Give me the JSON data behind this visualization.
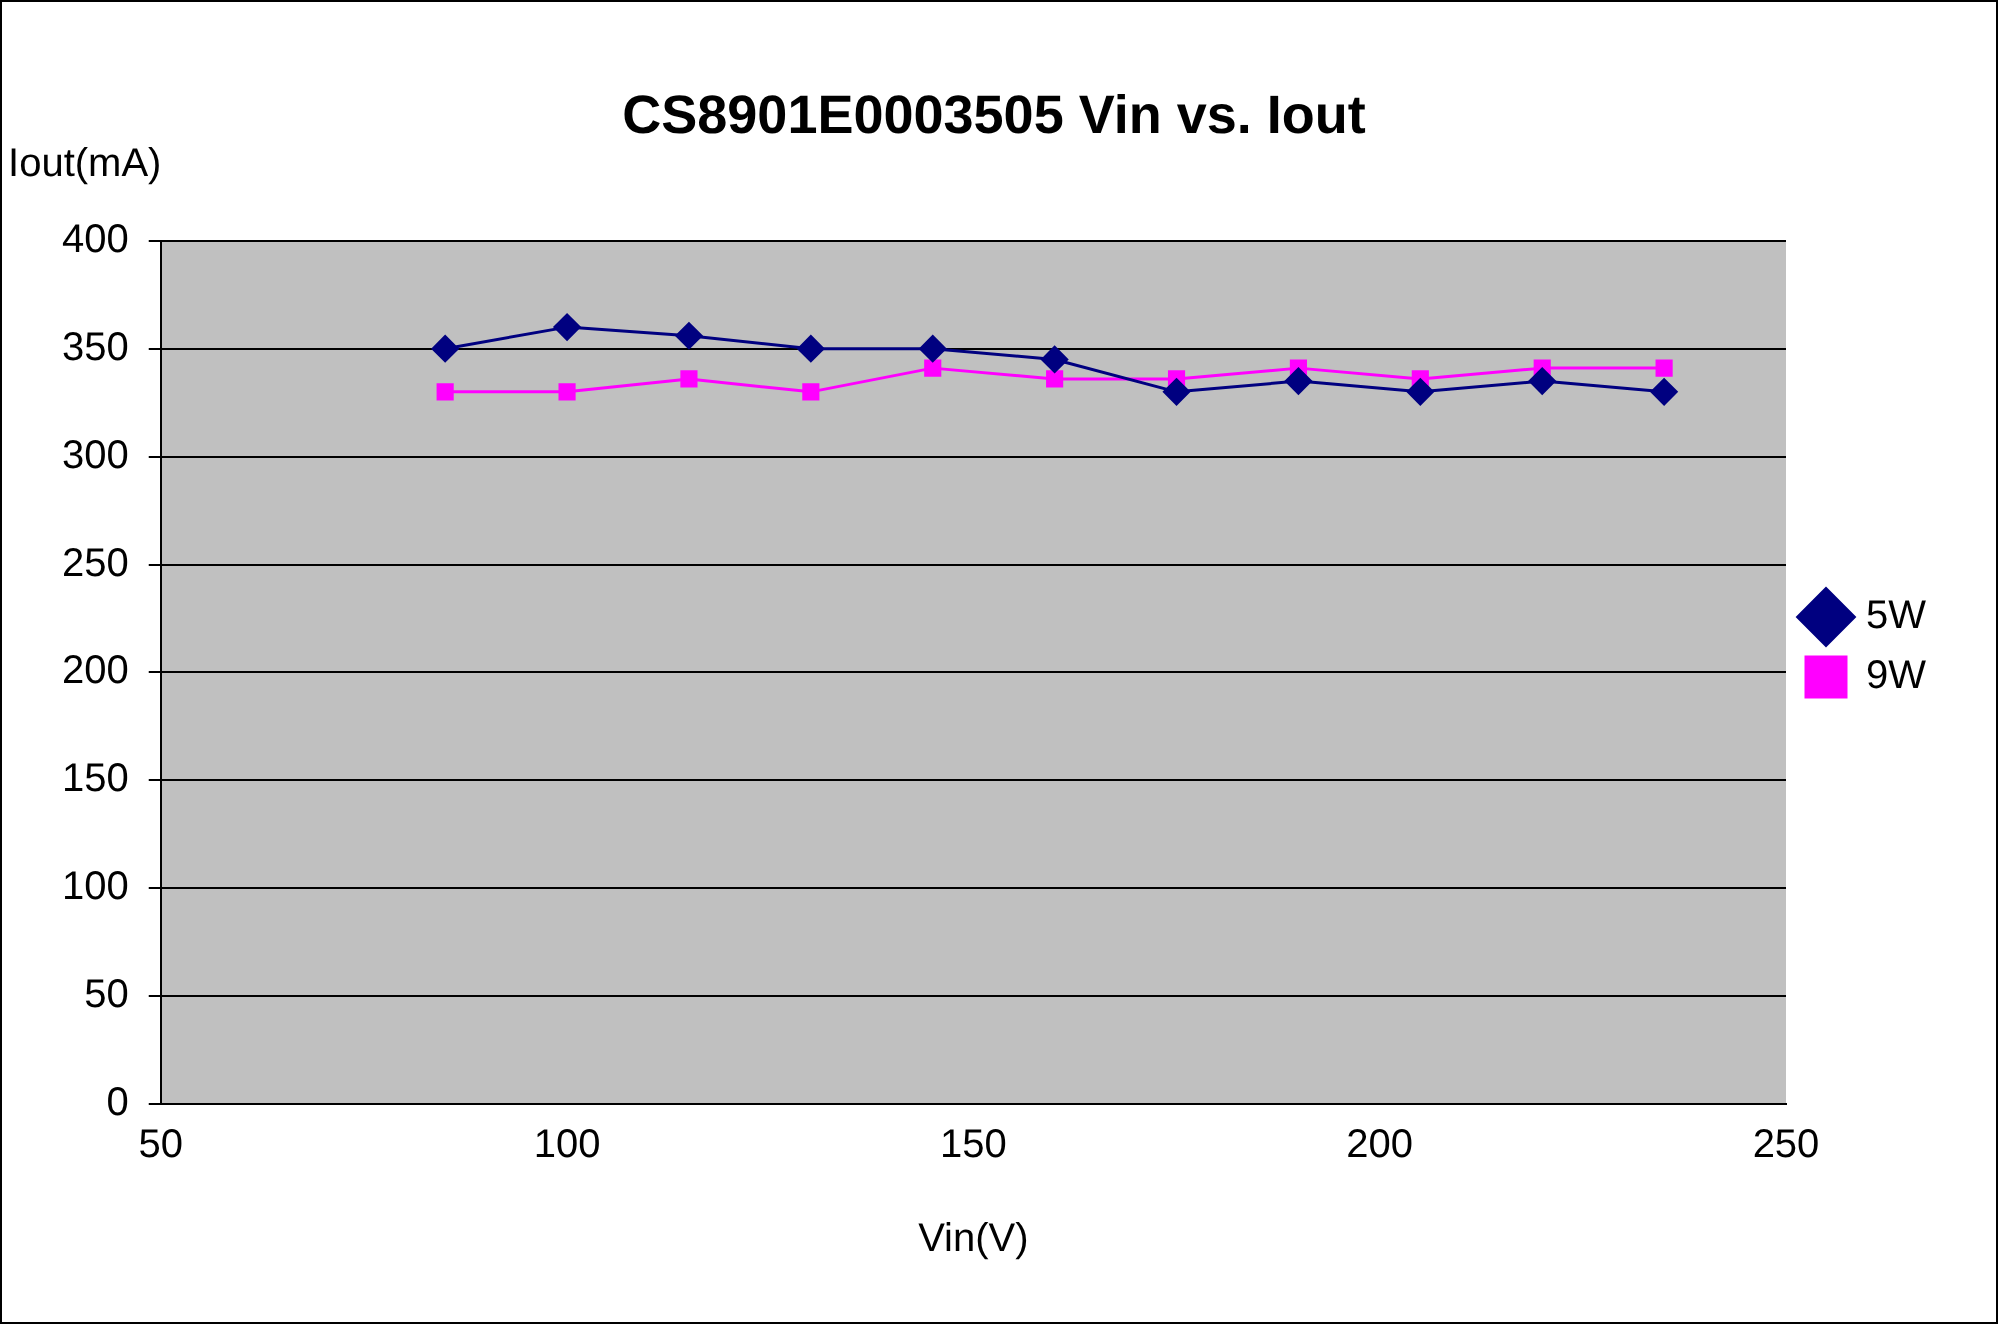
{
  "chart_data": {
    "type": "line",
    "title": "CS8901E0003505 Vin vs. Iout",
    "xlabel": "Vin(V)",
    "ylabel": "Iout(mA)",
    "x": [
      85,
      100,
      115,
      130,
      145,
      160,
      175,
      190,
      205,
      220,
      235
    ],
    "series": [
      {
        "name": "5W",
        "color": "#000080",
        "marker": "diamond",
        "values": [
          350,
          360,
          356,
          350,
          350,
          345,
          330,
          335,
          330,
          335,
          330
        ]
      },
      {
        "name": "9W",
        "color": "#ff00ff",
        "marker": "square",
        "values": [
          330,
          330,
          336,
          330,
          341,
          336,
          336,
          341,
          336,
          341,
          341
        ]
      }
    ],
    "xlim": [
      50,
      250
    ],
    "xticks": [
      50,
      100,
      150,
      200,
      250
    ],
    "ylim": [
      0,
      400
    ],
    "yticks": [
      0,
      50,
      100,
      150,
      200,
      250,
      300,
      350,
      400
    ],
    "grid": "y",
    "legend": "right",
    "line_style": "solid"
  }
}
